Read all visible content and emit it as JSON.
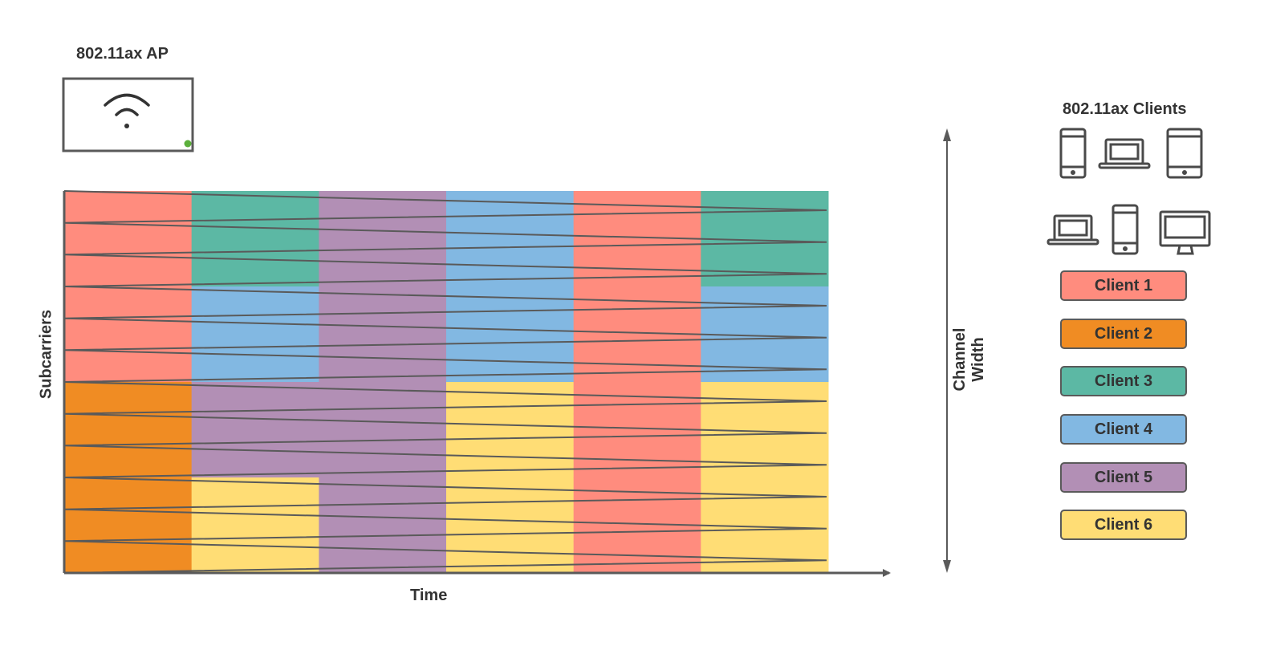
{
  "ap": {
    "title": "802.11ax AP",
    "icon": "wifi-router-icon",
    "status_color": "#5BAF3B"
  },
  "clients": {
    "title": "802.11ax Clients",
    "icons": [
      "phone-icon",
      "laptop-icon",
      "tablet-icon",
      "laptop-icon",
      "phone-icon",
      "desktop-icon"
    ]
  },
  "axes": {
    "x_label": "Time",
    "y_label": "Subcarriers",
    "channel_width_label": "Channel Width"
  },
  "legend": [
    {
      "label": "Client 1",
      "color": "#FF8C7E"
    },
    {
      "label": "Client 2",
      "color": "#F08C23"
    },
    {
      "label": "Client 3",
      "color": "#5CB8A4"
    },
    {
      "label": "Client 4",
      "color": "#82B8E2"
    },
    {
      "label": "Client 5",
      "color": "#B28FB5"
    },
    {
      "label": "Client 6",
      "color": "#FFDD75"
    }
  ],
  "resource_grid": {
    "time_slots": 6,
    "subcarrier_rows": 12,
    "allocations": [
      [
        1,
        1,
        1,
        1,
        1,
        1,
        2,
        2,
        2,
        2,
        2,
        2
      ],
      [
        3,
        3,
        3,
        4,
        4,
        4,
        5,
        5,
        5,
        6,
        6,
        6
      ],
      [
        5,
        5,
        5,
        5,
        5,
        5,
        5,
        5,
        5,
        5,
        5,
        5
      ],
      [
        4,
        4,
        4,
        4,
        4,
        4,
        6,
        6,
        6,
        6,
        6,
        6
      ],
      [
        1,
        1,
        1,
        1,
        1,
        1,
        1,
        1,
        1,
        1,
        1,
        1
      ],
      [
        3,
        3,
        3,
        4,
        4,
        4,
        6,
        6,
        6,
        6,
        6,
        6
      ]
    ]
  }
}
